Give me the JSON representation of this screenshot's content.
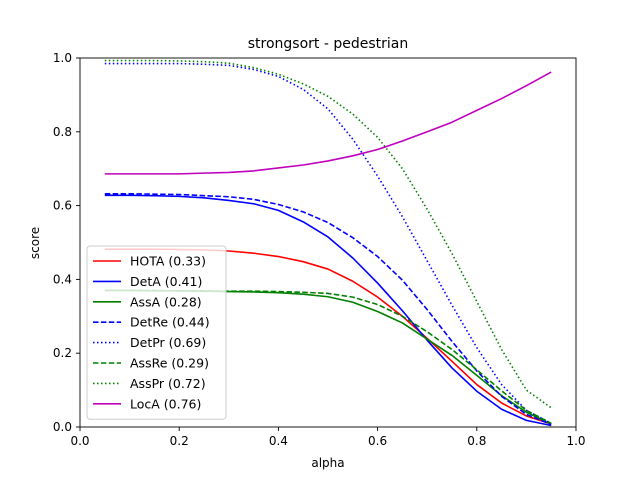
{
  "chart_data": {
    "type": "line",
    "title": "strongsort - pedestrian",
    "xlabel": "alpha",
    "ylabel": "score",
    "xlim": [
      0.0,
      1.0
    ],
    "ylim": [
      0.0,
      1.0
    ],
    "xticks": [
      0.0,
      0.2,
      0.4,
      0.6,
      0.8,
      1.0
    ],
    "xtick_labels": [
      "0.0",
      "0.2",
      "0.4",
      "0.6",
      "0.8",
      "1.0"
    ],
    "yticks": [
      0.0,
      0.2,
      0.4,
      0.6,
      0.8,
      1.0
    ],
    "ytick_labels": [
      "0.0",
      "0.2",
      "0.4",
      "0.6",
      "0.8",
      "1.0"
    ],
    "grid": false,
    "legend_position": "lower-left",
    "x": [
      0.05,
      0.1,
      0.15,
      0.2,
      0.25,
      0.3,
      0.35,
      0.4,
      0.45,
      0.5,
      0.55,
      0.6,
      0.65,
      0.7,
      0.75,
      0.8,
      0.85,
      0.9,
      0.95
    ],
    "series": [
      {
        "name": "HOTA (0.33)",
        "color": "#ff0000",
        "dash": "solid",
        "values": [
          0.482,
          0.482,
          0.482,
          0.481,
          0.48,
          0.477,
          0.471,
          0.462,
          0.448,
          0.428,
          0.395,
          0.352,
          0.3,
          0.24,
          0.178,
          0.115,
          0.065,
          0.03,
          0.008
        ]
      },
      {
        "name": "DetA (0.41)",
        "color": "#0000ff",
        "dash": "solid",
        "values": [
          0.628,
          0.628,
          0.627,
          0.625,
          0.621,
          0.614,
          0.605,
          0.587,
          0.556,
          0.515,
          0.458,
          0.39,
          0.315,
          0.235,
          0.16,
          0.097,
          0.048,
          0.018,
          0.004
        ]
      },
      {
        "name": "AssA (0.28)",
        "color": "#008000",
        "dash": "solid",
        "values": [
          0.37,
          0.37,
          0.369,
          0.369,
          0.368,
          0.367,
          0.366,
          0.364,
          0.36,
          0.353,
          0.338,
          0.313,
          0.282,
          0.238,
          0.194,
          0.14,
          0.085,
          0.04,
          0.008
        ]
      },
      {
        "name": "DetRe (0.44)",
        "color": "#0000ff",
        "dash": "dashed",
        "values": [
          0.632,
          0.632,
          0.631,
          0.63,
          0.627,
          0.624,
          0.617,
          0.603,
          0.583,
          0.554,
          0.513,
          0.462,
          0.398,
          0.318,
          0.232,
          0.152,
          0.083,
          0.034,
          0.007
        ]
      },
      {
        "name": "DetPr (0.69)",
        "color": "#0000ff",
        "dash": "dotted",
        "values": [
          0.985,
          0.985,
          0.985,
          0.985,
          0.983,
          0.98,
          0.969,
          0.95,
          0.915,
          0.862,
          0.78,
          0.68,
          0.57,
          0.45,
          0.33,
          0.215,
          0.115,
          0.045,
          0.01
        ]
      },
      {
        "name": "AssRe (0.29)",
        "color": "#008000",
        "dash": "dashed",
        "values": [
          0.37,
          0.37,
          0.37,
          0.369,
          0.369,
          0.368,
          0.368,
          0.367,
          0.365,
          0.362,
          0.352,
          0.332,
          0.3,
          0.258,
          0.21,
          0.155,
          0.098,
          0.045,
          0.01
        ]
      },
      {
        "name": "AssPr (0.72)",
        "color": "#008000",
        "dash": "dotted",
        "values": [
          0.993,
          0.993,
          0.993,
          0.992,
          0.99,
          0.986,
          0.974,
          0.956,
          0.93,
          0.896,
          0.848,
          0.785,
          0.7,
          0.59,
          0.47,
          0.34,
          0.21,
          0.1,
          0.052
        ]
      },
      {
        "name": "LocA (0.76)",
        "color": "#bf00bf",
        "dash": "solid",
        "values": [
          0.686,
          0.686,
          0.686,
          0.686,
          0.688,
          0.69,
          0.694,
          0.702,
          0.71,
          0.721,
          0.735,
          0.752,
          0.775,
          0.8,
          0.826,
          0.858,
          0.89,
          0.925,
          0.962
        ]
      }
    ]
  }
}
